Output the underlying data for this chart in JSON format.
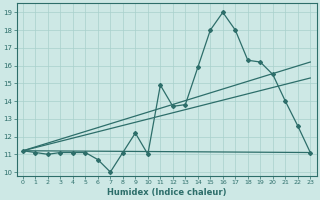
{
  "xlabel": "Humidex (Indice chaleur)",
  "ylabel": "",
  "background_color": "#cde8e5",
  "grid_color": "#a8d0cc",
  "line_color": "#2d6e6a",
  "xlim": [
    -0.5,
    23.5
  ],
  "ylim": [
    9.8,
    19.5
  ],
  "xticks": [
    0,
    1,
    2,
    3,
    4,
    5,
    6,
    7,
    8,
    9,
    10,
    11,
    12,
    13,
    14,
    15,
    16,
    17,
    18,
    19,
    20,
    21,
    22,
    23
  ],
  "yticks": [
    10,
    11,
    12,
    13,
    14,
    15,
    16,
    17,
    18,
    19
  ],
  "main_x": [
    0,
    1,
    2,
    3,
    4,
    5,
    6,
    7,
    8,
    9,
    10,
    11,
    12,
    13,
    14,
    15,
    16,
    17,
    18,
    19,
    20,
    21,
    22,
    23
  ],
  "main_y": [
    11.2,
    11.1,
    11.0,
    11.1,
    11.1,
    11.1,
    10.7,
    10.0,
    11.1,
    12.2,
    11.0,
    14.9,
    13.7,
    13.8,
    15.9,
    18.0,
    19.0,
    18.0,
    16.3,
    16.2,
    15.5,
    14.0,
    12.6,
    11.1
  ],
  "line1_x": [
    0,
    23
  ],
  "line1_y": [
    11.2,
    16.2
  ],
  "line2_x": [
    0,
    23
  ],
  "line2_y": [
    11.2,
    15.3
  ],
  "line3_x": [
    0,
    23
  ],
  "line3_y": [
    11.2,
    11.1
  ]
}
